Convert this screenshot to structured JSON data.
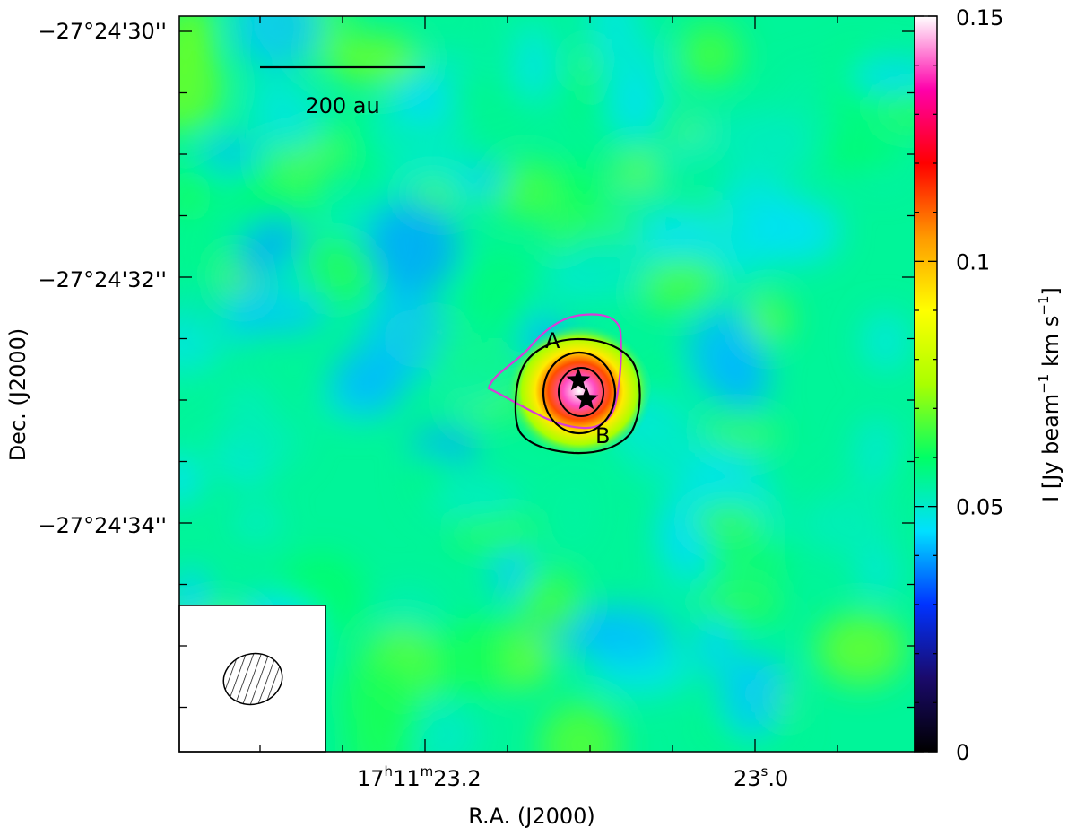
{
  "chart_data": {
    "type": "heatmap",
    "xlabel": "R.A. (J2000)",
    "ylabel": "Dec. (J2000)",
    "x_ticks": [
      {
        "value": "17h11m23.2s",
        "parts": [
          "17",
          "h",
          "11",
          "m",
          "23.2",
          "s"
        ],
        "label": "17h11m23.2s"
      },
      {
        "value": "17h11m23.0s",
        "parts": [
          "23",
          "s",
          ".0"
        ],
        "label": "23.0s"
      }
    ],
    "y_ticks": [
      {
        "value": "-27°24'30\"",
        "label": "−27°24'30''"
      },
      {
        "value": "-27°24'32\"",
        "label": "−27°24'32''"
      },
      {
        "value": "-27°24'34\"",
        "label": "−27°24'34''"
      }
    ],
    "colorbar": {
      "label_parts": [
        "I [Jy beam",
        "−1",
        " km s",
        "−1",
        "]"
      ],
      "range": [
        0,
        0.15
      ],
      "ticks": [
        {
          "value": 0,
          "label": "0"
        },
        {
          "value": 0.05,
          "label": "0.05"
        },
        {
          "value": 0.1,
          "label": "0.1"
        },
        {
          "value": 0.15,
          "label": "0.15"
        }
      ],
      "colors": [
        "#000000",
        "#1a0a6b",
        "#0033ff",
        "#00e0ff",
        "#00ff66",
        "#aaff00",
        "#ffff00",
        "#ff9900",
        "#ff0000",
        "#ff00aa",
        "#ffffff"
      ]
    },
    "background_level": 0.055,
    "peak_level": 0.15,
    "scale_bar": {
      "label": "200 au"
    },
    "sources": [
      {
        "name": "A",
        "label": "A"
      },
      {
        "name": "B",
        "label": "B"
      }
    ],
    "contour_colors": {
      "primary": "#000000",
      "secondary": "#d83cd8"
    },
    "beam": {
      "hatched": true
    }
  }
}
